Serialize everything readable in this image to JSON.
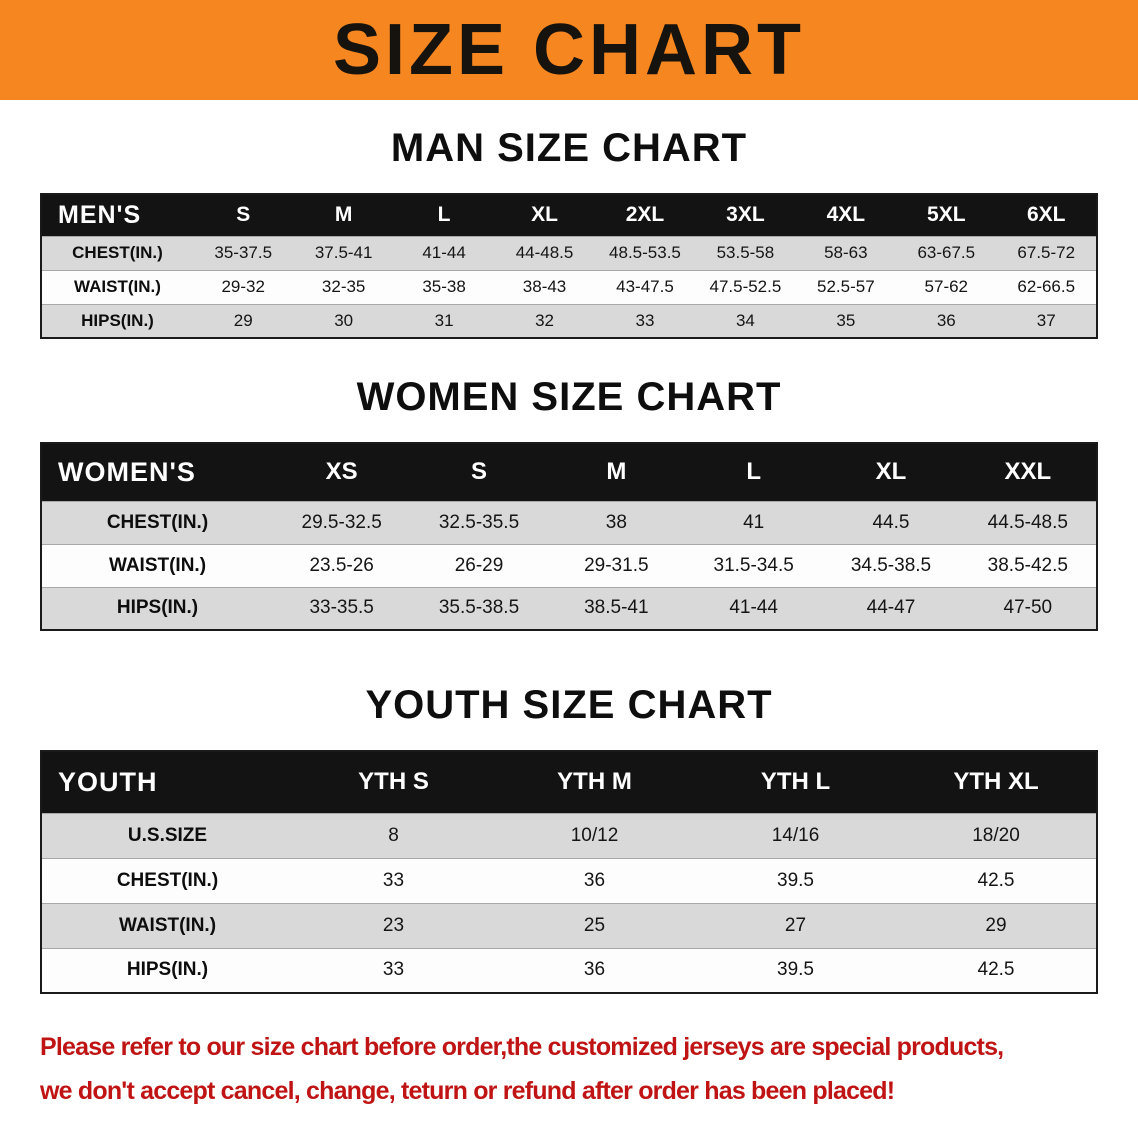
{
  "banner": {
    "title": "SIZE CHART",
    "bg_color": "#F6861F"
  },
  "sections": [
    {
      "id": "men",
      "heading": "MAN SIZE CHART",
      "header_label": "MEN'S",
      "columns": [
        "S",
        "M",
        "L",
        "XL",
        "2XL",
        "3XL",
        "4XL",
        "5XL",
        "6XL"
      ],
      "rows": [
        {
          "label": "CHEST(IN.)",
          "values": [
            "35-37.5",
            "37.5-41",
            "41-44",
            "44-48.5",
            "48.5-53.5",
            "53.5-58",
            "58-63",
            "63-67.5",
            "67.5-72"
          ]
        },
        {
          "label": "WAIST(IN.)",
          "values": [
            "29-32",
            "32-35",
            "35-38",
            "38-43",
            "43-47.5",
            "47.5-52.5",
            "52.5-57",
            "57-62",
            "62-66.5"
          ]
        },
        {
          "label": "HIPS(IN.)",
          "values": [
            "29",
            "30",
            "31",
            "32",
            "33",
            "34",
            "35",
            "36",
            "37"
          ]
        }
      ]
    },
    {
      "id": "women",
      "heading": "WOMEN SIZE CHART",
      "header_label": "WOMEN'S",
      "columns": [
        "XS",
        "S",
        "M",
        "L",
        "XL",
        "XXL"
      ],
      "rows": [
        {
          "label": "CHEST(IN.)",
          "values": [
            "29.5-32.5",
            "32.5-35.5",
            "38",
            "41",
            "44.5",
            "44.5-48.5"
          ]
        },
        {
          "label": "WAIST(IN.)",
          "values": [
            "23.5-26",
            "26-29",
            "29-31.5",
            "31.5-34.5",
            "34.5-38.5",
            "38.5-42.5"
          ]
        },
        {
          "label": "HIPS(IN.)",
          "values": [
            "33-35.5",
            "35.5-38.5",
            "38.5-41",
            "41-44",
            "44-47",
            "47-50"
          ]
        }
      ]
    },
    {
      "id": "youth",
      "heading": "YOUTH SIZE CHART",
      "header_label": "YOUTH",
      "columns": [
        "YTH S",
        "YTH M",
        "YTH L",
        "YTH XL"
      ],
      "rows": [
        {
          "label": "U.S.SIZE",
          "values": [
            "8",
            "10/12",
            "14/16",
            "18/20"
          ]
        },
        {
          "label": "CHEST(IN.)",
          "values": [
            "33",
            "36",
            "39.5",
            "42.5"
          ]
        },
        {
          "label": "WAIST(IN.)",
          "values": [
            "23",
            "25",
            "27",
            "29"
          ]
        },
        {
          "label": "HIPS(IN.)",
          "values": [
            "33",
            "36",
            "39.5",
            "42.5"
          ]
        }
      ]
    }
  ],
  "disclaimer": {
    "lines": [
      "Please refer to our size chart before order,the customized jerseys are special products,",
      "we don't accept cancel, change, teturn or refund after order has been placed!"
    ],
    "color": "#C01414"
  }
}
